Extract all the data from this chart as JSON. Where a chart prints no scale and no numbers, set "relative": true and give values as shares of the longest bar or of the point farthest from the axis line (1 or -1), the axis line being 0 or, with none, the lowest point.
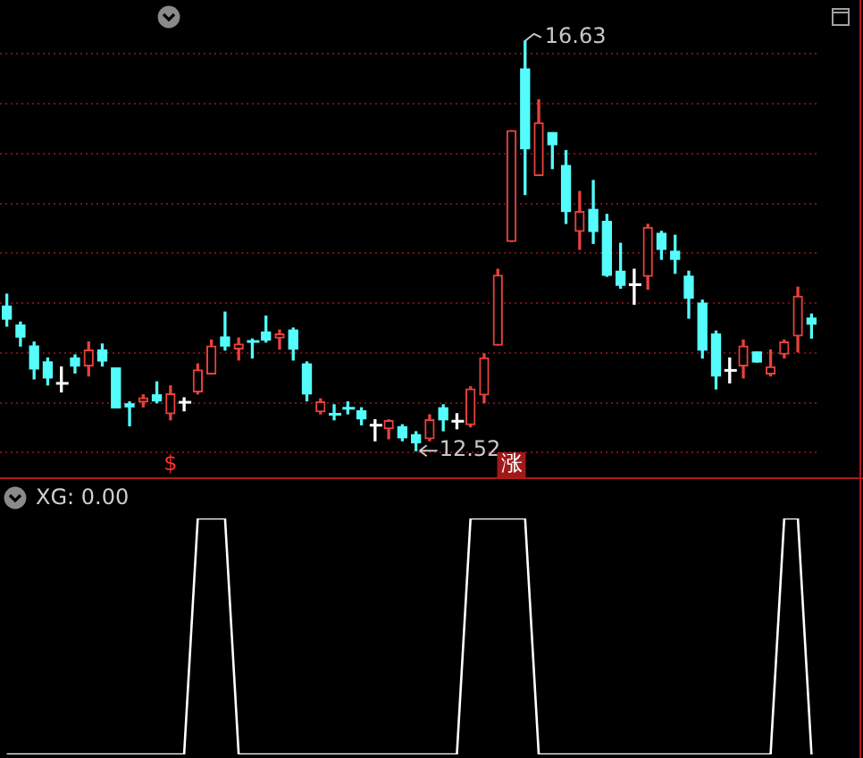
{
  "chart_data": [
    {
      "type": "candlestick",
      "categories": [
        null,
        null,
        null,
        null,
        null,
        null,
        null,
        null,
        null,
        null,
        null,
        null,
        null,
        null,
        null,
        null,
        null,
        null,
        null,
        null,
        null,
        null,
        null,
        null,
        null,
        null,
        null,
        null,
        null,
        null,
        null,
        null,
        null,
        null,
        null,
        null,
        null,
        null,
        null,
        null,
        null,
        null,
        null,
        null,
        null,
        null,
        null,
        null,
        null,
        null,
        null,
        null,
        null,
        null,
        null,
        null,
        null,
        null,
        null,
        null
      ],
      "ohlc": [
        [
          13.97,
          14.09,
          13.77,
          13.84
        ],
        [
          13.78,
          13.81,
          13.57,
          13.66
        ],
        [
          13.57,
          13.61,
          13.24,
          13.34
        ],
        [
          13.41,
          13.45,
          13.18,
          13.25
        ],
        [
          13.2,
          13.36,
          13.11,
          13.2
        ],
        [
          13.45,
          13.48,
          13.3,
          13.37
        ],
        [
          13.37,
          13.61,
          13.27,
          13.53
        ],
        [
          13.53,
          13.59,
          13.37,
          13.42
        ],
        [
          13.35,
          13.35,
          12.95,
          12.95
        ],
        [
          12.99,
          13.01,
          12.77,
          12.96
        ],
        [
          13.01,
          13.08,
          12.96,
          13.05
        ],
        [
          13.08,
          13.21,
          13,
          13.02
        ],
        [
          12.89,
          13.17,
          12.83,
          13.09
        ],
        [
          13.01,
          13.05,
          12.92,
          13.01
        ],
        [
          13.11,
          13.39,
          13.09,
          13.33
        ],
        [
          13.29,
          13.63,
          13.29,
          13.57
        ],
        [
          13.66,
          13.91,
          13.53,
          13.57
        ],
        [
          13.54,
          13.65,
          13.43,
          13.59
        ],
        [
          13.62,
          13.64,
          13.45,
          13.62
        ],
        [
          13.71,
          13.87,
          13.61,
          13.63
        ],
        [
          13.65,
          13.73,
          13.54,
          13.69
        ],
        [
          13.73,
          13.75,
          13.43,
          13.54
        ],
        [
          13.39,
          13.41,
          13.02,
          13.09
        ],
        [
          12.91,
          13.04,
          12.89,
          13.01
        ],
        [
          12.89,
          12.98,
          12.83,
          12.89
        ],
        [
          12.95,
          13.01,
          12.89,
          12.95
        ],
        [
          12.92,
          12.95,
          12.78,
          12.84
        ],
        [
          12.78,
          12.83,
          12.62,
          12.78
        ],
        [
          12.74,
          12.83,
          12.64,
          12.82
        ],
        [
          12.76,
          12.78,
          12.62,
          12.65
        ],
        [
          12.68,
          12.71,
          12.52,
          12.6
        ],
        [
          12.64,
          12.88,
          12.62,
          12.83
        ],
        [
          12.95,
          12.98,
          12.72,
          12.83
        ],
        [
          12.82,
          12.89,
          12.74,
          12.82
        ],
        [
          12.78,
          13.16,
          12.76,
          13.14
        ],
        [
          13.08,
          13.49,
          13,
          13.45
        ],
        [
          13.58,
          14.34,
          13.58,
          14.28
        ],
        [
          14.62,
          15.73,
          14.62,
          15.73
        ],
        [
          16.35,
          16.63,
          15.09,
          15.55
        ],
        [
          15.28,
          16.04,
          15.28,
          15.81
        ],
        [
          15.71,
          15.71,
          15.35,
          15.59
        ],
        [
          15.38,
          15.53,
          14.8,
          14.92
        ],
        [
          14.72,
          15.12,
          14.54,
          14.92
        ],
        [
          14.94,
          15.23,
          14.6,
          14.72
        ],
        [
          14.82,
          14.89,
          14.27,
          14.28
        ],
        [
          14.32,
          14.6,
          14.15,
          14.18
        ],
        [
          14.19,
          14.34,
          13.99,
          14.19
        ],
        [
          14.27,
          14.79,
          14.14,
          14.76
        ],
        [
          14.7,
          14.72,
          14.44,
          14.54
        ],
        [
          14.52,
          14.68,
          14.3,
          14.44
        ],
        [
          14.27,
          14.32,
          13.85,
          14.05
        ],
        [
          14,
          14.03,
          13.45,
          13.53
        ],
        [
          13.69,
          13.72,
          13.14,
          13.27
        ],
        [
          13.33,
          13.45,
          13.2,
          13.33
        ],
        [
          13.37,
          13.63,
          13.25,
          13.57
        ],
        [
          13.51,
          13.51,
          13.41,
          13.41
        ],
        [
          13.29,
          13.53,
          13.27,
          13.36
        ],
        [
          13.49,
          13.63,
          13.45,
          13.61
        ],
        [
          13.67,
          14.16,
          13.51,
          14.07
        ],
        [
          13.85,
          13.89,
          13.65,
          13.79
        ]
      ],
      "colors": [
        "#54fcfc",
        "#54fcfc",
        "#54fcfc",
        "#54fcfc",
        "#ffffff",
        "#54fcfc",
        "#e8413c",
        "#54fcfc",
        "#54fcfc",
        "#54fcfc",
        "#e8413c",
        "#54fcfc",
        "#e8413c",
        "#ffffff",
        "#e8413c",
        "#e8413c",
        "#54fcfc",
        "#e8413c",
        "#54fcfc",
        "#54fcfc",
        "#e8413c",
        "#54fcfc",
        "#54fcfc",
        "#e8413c",
        "#54fcfc",
        "#54fcfc",
        "#54fcfc",
        "#ffffff",
        "#e8413c",
        "#54fcfc",
        "#54fcfc",
        "#e8413c",
        "#54fcfc",
        "#ffffff",
        "#e8413c",
        "#e8413c",
        "#e8413c",
        "#e8413c",
        "#54fcfc",
        "#e8413c",
        "#54fcfc",
        "#54fcfc",
        "#e8413c",
        "#54fcfc",
        "#54fcfc",
        "#54fcfc",
        "#ffffff",
        "#e8413c",
        "#54fcfc",
        "#54fcfc",
        "#54fcfc",
        "#54fcfc",
        "#54fcfc",
        "#ffffff",
        "#e8413c",
        "#54fcfc",
        "#e8413c",
        "#e8413c",
        "#e8413c",
        "#54fcfc"
      ],
      "yticks": [
        {
          "value": 12.5,
          "label": null
        },
        {
          "value": 13,
          "label": null
        },
        {
          "value": 13.5,
          "label": null
        },
        {
          "value": 14,
          "label": null
        },
        {
          "value": 14.5,
          "label": null
        },
        {
          "value": 15,
          "label": null
        },
        {
          "value": 15.5,
          "label": null
        },
        {
          "value": 16,
          "label": null
        },
        {
          "value": 16.5,
          "label": null
        }
      ],
      "grid": true,
      "tick_labels": false,
      "annotations": [
        "16.63",
        "12.52",
        "$",
        "涨"
      ]
    },
    {
      "type": "line",
      "title": "XG: 0.00",
      "categories": [
        null,
        null,
        null,
        null,
        null,
        null,
        null,
        null,
        null,
        null,
        null,
        null,
        null,
        null,
        null,
        null,
        null,
        null,
        null,
        null,
        null,
        null,
        null,
        null,
        null,
        null,
        null,
        null,
        null,
        null,
        null,
        null,
        null,
        null,
        null,
        null,
        null,
        null,
        null,
        null,
        null,
        null,
        null,
        null,
        null,
        null,
        null,
        null,
        null,
        null,
        null,
        null,
        null,
        null,
        null,
        null,
        null,
        null,
        null,
        null
      ],
      "series": [
        {
          "color": "#ffffff",
          "values": [
            0,
            0,
            0,
            0,
            0,
            0,
            0,
            0,
            0,
            0,
            0,
            0,
            0,
            0,
            1,
            1,
            1,
            0,
            0,
            0,
            0,
            0,
            0,
            0,
            0,
            0,
            0,
            0,
            0,
            0,
            0,
            0,
            0,
            0,
            1,
            1,
            1,
            1,
            1,
            0,
            0,
            0,
            0,
            0,
            0,
            0,
            0,
            0,
            0,
            0,
            0,
            0,
            0,
            0,
            0,
            0,
            0,
            1,
            1,
            0
          ]
        }
      ],
      "relative": true,
      "tick_labels": false
    }
  ]
}
